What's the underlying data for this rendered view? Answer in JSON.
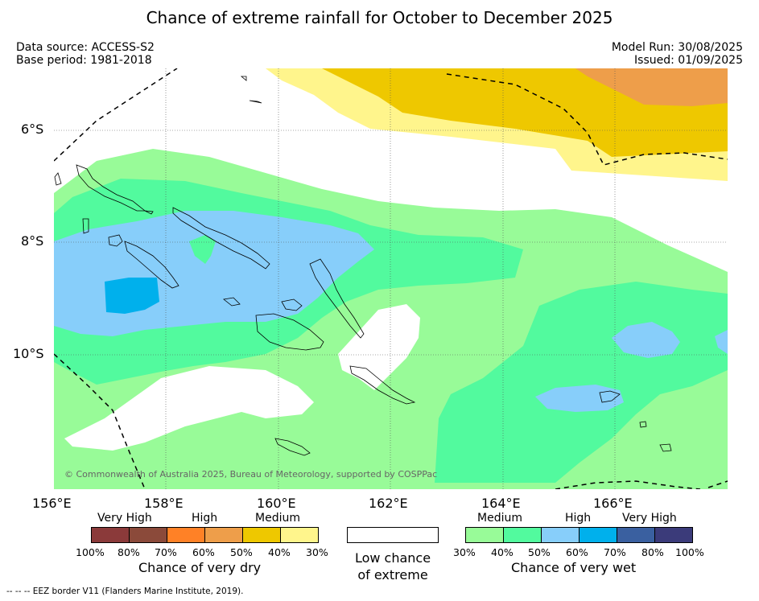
{
  "title": "Chance of extreme rainfall for October to December 2025",
  "data_source": "Data source: ACCESS-S2",
  "base_period": "Base period: 1981-2018",
  "model_run": "Model Run: 30/08/2025",
  "issued": "Issued: 01/09/2025",
  "copyright": "© Commonwealth of Australia 2025, Bureau of Meteorology, supported by COSPPac",
  "eez_note": "-- -- -- EEZ border V11 (Flanders Marine Institute, 2019).",
  "lat_ticks": [
    "6°S",
    "8°S",
    "10°S"
  ],
  "lon_ticks": [
    "156°E",
    "158°E",
    "160°E",
    "162°E",
    "164°E",
    "166°E"
  ],
  "legend": {
    "dry": {
      "levels": [
        "Very High",
        "High",
        "Medium"
      ],
      "pcts": [
        "100%",
        "80%",
        "70%",
        "60%",
        "50%",
        "40%",
        "30%"
      ],
      "colors": [
        "#8b3a3a",
        "#8b4a3a",
        "#ff8126",
        "#ee9e4a",
        "#eec800",
        "#fff58c"
      ],
      "title": "Chance of very dry"
    },
    "low": {
      "title_line1": "Low chance",
      "title_line2": "of extreme",
      "color": "#ffffff"
    },
    "wet": {
      "levels": [
        "Medium",
        "High",
        "Very High"
      ],
      "pcts": [
        "30%",
        "40%",
        "50%",
        "60%",
        "70%",
        "80%",
        "100%"
      ],
      "colors": [
        "#98fb98",
        "#52fa9e",
        "#87cefa",
        "#00b0ec",
        "#3a60a0",
        "#3b3b7a"
      ],
      "title": "Chance of very wet"
    }
  },
  "colors": {
    "medium_wet": "#98fb98",
    "high_wet_light": "#52fa9e",
    "high_wet": "#87cefa",
    "very_high_wet": "#00b0ec",
    "medium_dry": "#fff58c",
    "high_dry_light": "#eec800",
    "high_dry": "#ee9e4a",
    "grid": "#555555"
  }
}
